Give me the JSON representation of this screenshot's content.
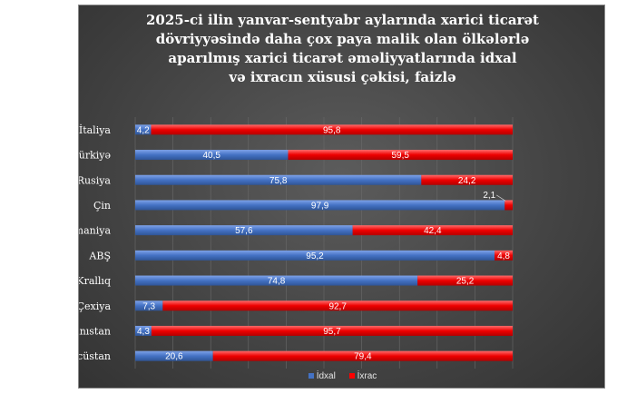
{
  "chart_data": {
    "type": "bar",
    "orientation": "horizontal",
    "stacked": true,
    "title_lines": [
      "2025-ci ilin yanvar-sentyabr aylarında xarici ticarət",
      "dövriyyəsində daha çox paya malik olan ölkələrlə",
      "aparılmış xarici ticarət əməliyyatlarında idxal",
      "və ixracın xüsusi çəkisi, faizlə"
    ],
    "categories": [
      "İtaliya",
      "Türkiyə",
      "Rusiya",
      "Çin",
      "Almaniya",
      "ABŞ",
      "Birləşmiş Krallıq",
      "Çexiya",
      "Yunanıstan",
      "Gürcüstan"
    ],
    "series": [
      {
        "name": "İdxal",
        "color": "#4472c4",
        "values": [
          4.2,
          40.5,
          75.8,
          97.9,
          57.6,
          95.2,
          74.8,
          7.3,
          4.3,
          20.6
        ],
        "labels": [
          "4,2",
          "40,5",
          "75,8",
          "97,9",
          "57,6",
          "95,2",
          "74,8",
          "7,3",
          "4,3",
          "20,6"
        ]
      },
      {
        "name": "İxrac",
        "color": "#ff0000",
        "values": [
          95.8,
          59.5,
          24.2,
          2.1,
          42.4,
          4.8,
          25.2,
          92.7,
          95.7,
          79.4
        ],
        "labels": [
          "95,8",
          "59,5",
          "24,2",
          "2,1",
          "42,4",
          "4,8",
          "25,2",
          "92,7",
          "95,7",
          "79,4"
        ]
      }
    ],
    "xlim": [
      0,
      100
    ],
    "legend_position": "bottom",
    "grid": true
  }
}
